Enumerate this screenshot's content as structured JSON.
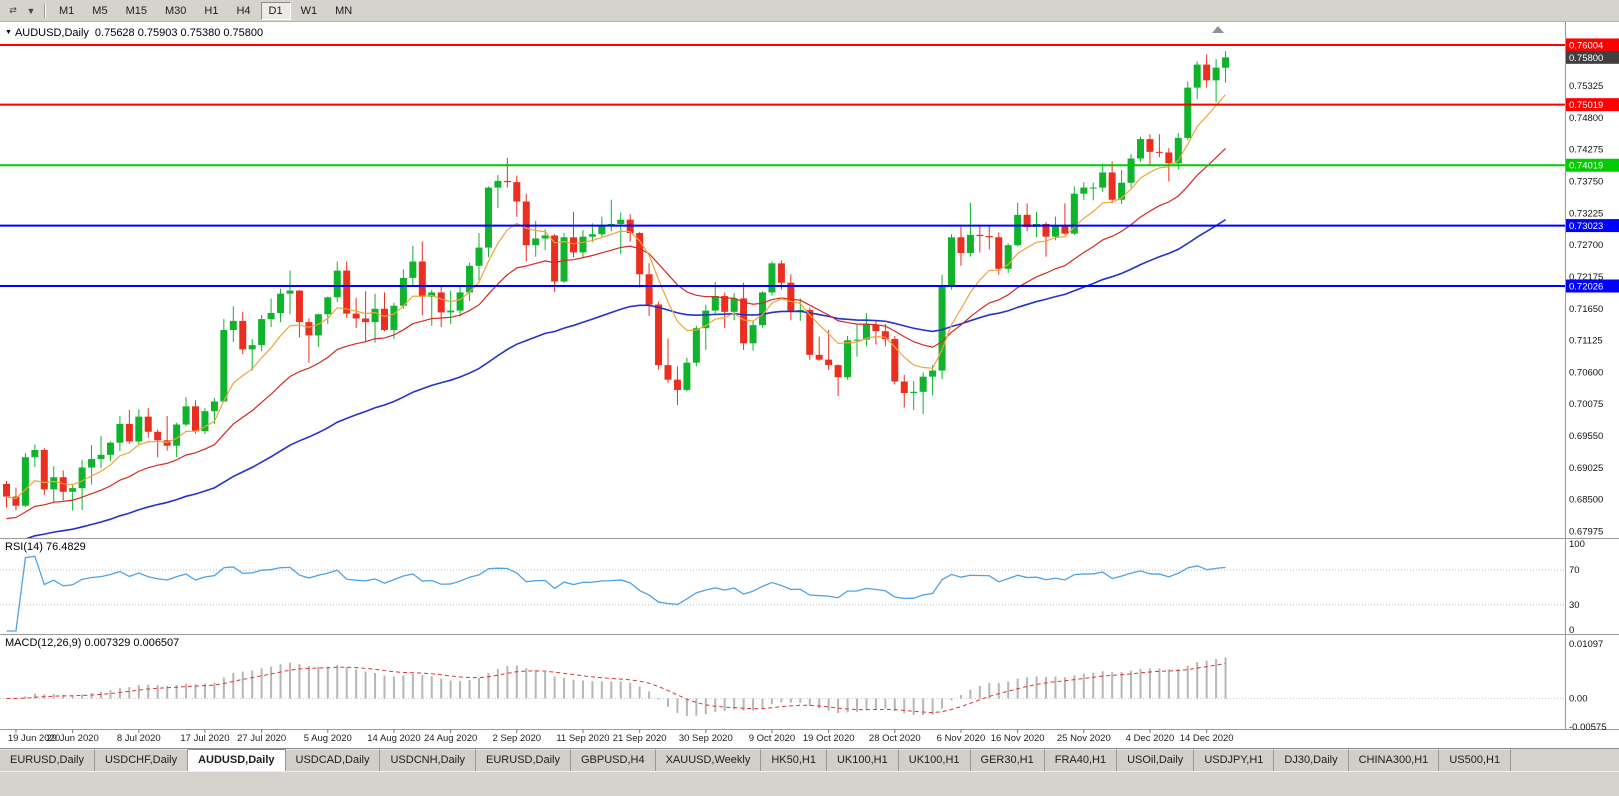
{
  "icons": {
    "collapse_glyph": "▼",
    "panning_glyph": "⇄",
    "caret_glyph": "▼"
  },
  "toolbar": {
    "timeframes": [
      {
        "label": "M1",
        "active": false
      },
      {
        "label": "M5",
        "active": false
      },
      {
        "label": "M15",
        "active": false
      },
      {
        "label": "M30",
        "active": false
      },
      {
        "label": "H1",
        "active": false
      },
      {
        "label": "H4",
        "active": false
      },
      {
        "label": "D1",
        "active": true
      },
      {
        "label": "W1",
        "active": false
      },
      {
        "label": "MN",
        "active": false
      }
    ]
  },
  "chart": {
    "title_symbol": "AUDUSD,Daily",
    "title_ohlc": "0.75628 0.75903 0.75380 0.75800"
  },
  "chart_data": {
    "type": "candlestick",
    "symbol": "AUDUSD",
    "timeframe": "Daily",
    "last_candle": {
      "open": 0.75628,
      "high": 0.75903,
      "low": 0.7538,
      "close": 0.758
    },
    "current_price_label": "0.75800",
    "price_range": {
      "min": 0.679,
      "max": 0.7635
    },
    "price_axis_ticks": [
      "0.75325",
      "0.74800",
      "0.74275",
      "0.73750",
      "0.73225",
      "0.72700",
      "0.72175",
      "0.71650",
      "0.71125",
      "0.70600",
      "0.70075",
      "0.69550",
      "0.69025",
      "0.68500",
      "0.67975"
    ],
    "levels": [
      {
        "price": 0.76004,
        "label": "0.76004",
        "color": "#ff0000",
        "kind": "resistance"
      },
      {
        "price": 0.75019,
        "label": "0.75019",
        "color": "#ff0000",
        "kind": "resistance"
      },
      {
        "price": 0.74019,
        "label": "0.74019",
        "color": "#00cc00",
        "kind": "support"
      },
      {
        "price": 0.73023,
        "label": "0.73023",
        "color": "#0000ff",
        "kind": "support"
      },
      {
        "price": 0.72026,
        "label": "0.72026",
        "color": "#0000ff",
        "kind": "support"
      }
    ],
    "x_labels": [
      [
        "19 Jun 2020",
        1
      ],
      [
        "29 Jun 2020",
        7
      ],
      [
        "8 Jul 2020",
        14
      ],
      [
        "17 Jul 2020",
        21
      ],
      [
        "27 Jul 2020",
        27
      ],
      [
        "5 Aug 2020",
        34
      ],
      [
        "14 Aug 2020",
        41
      ],
      [
        "24 Aug 2020",
        47
      ],
      [
        "2 Sep 2020",
        54
      ],
      [
        "11 Sep 2020",
        61
      ],
      [
        "21 Sep 2020",
        67
      ],
      [
        "30 Sep 2020",
        74
      ],
      [
        "9 Oct 2020",
        81
      ],
      [
        "19 Oct 2020",
        87
      ],
      [
        "28 Oct 2020",
        94
      ],
      [
        "6 Nov 2020",
        101
      ],
      [
        "16 Nov 2020",
        107
      ],
      [
        "25 Nov 2020",
        114
      ],
      [
        "4 Dec 2020",
        121
      ],
      [
        "14 Dec 2020",
        127
      ]
    ],
    "candles": [
      [
        0.6876,
        0.6881,
        0.6837,
        0.6855
      ],
      [
        0.6855,
        0.687,
        0.6832,
        0.684
      ],
      [
        0.684,
        0.6927,
        0.6838,
        0.692
      ],
      [
        0.692,
        0.6941,
        0.6904,
        0.6932
      ],
      [
        0.6932,
        0.6935,
        0.6858,
        0.6867
      ],
      [
        0.6867,
        0.6905,
        0.6846,
        0.6887
      ],
      [
        0.6887,
        0.6898,
        0.6849,
        0.6863
      ],
      [
        0.6863,
        0.6876,
        0.6832,
        0.6869
      ],
      [
        0.6869,
        0.6916,
        0.6833,
        0.6903
      ],
      [
        0.6903,
        0.694,
        0.6875,
        0.6917
      ],
      [
        0.6917,
        0.6955,
        0.6902,
        0.6924
      ],
      [
        0.6924,
        0.6946,
        0.6914,
        0.6944
      ],
      [
        0.6944,
        0.6988,
        0.693,
        0.6975
      ],
      [
        0.6975,
        0.6998,
        0.6942,
        0.6946
      ],
      [
        0.6946,
        0.6999,
        0.694,
        0.6987
      ],
      [
        0.6987,
        0.7001,
        0.6952,
        0.6962
      ],
      [
        0.6962,
        0.6966,
        0.692,
        0.6948
      ],
      [
        0.6948,
        0.6988,
        0.6931,
        0.6939
      ],
      [
        0.6939,
        0.6977,
        0.692,
        0.6974
      ],
      [
        0.6974,
        0.7019,
        0.6971,
        0.7004
      ],
      [
        0.7004,
        0.7014,
        0.6959,
        0.6963
      ],
      [
        0.6963,
        0.7001,
        0.6958,
        0.6996
      ],
      [
        0.6996,
        0.7018,
        0.6975,
        0.7012
      ],
      [
        0.7012,
        0.7148,
        0.7011,
        0.713
      ],
      [
        0.713,
        0.7169,
        0.711,
        0.7145
      ],
      [
        0.7145,
        0.716,
        0.709,
        0.7098
      ],
      [
        0.7098,
        0.7115,
        0.7063,
        0.7105
      ],
      [
        0.7105,
        0.7155,
        0.7095,
        0.7148
      ],
      [
        0.7148,
        0.7182,
        0.7135,
        0.7158
      ],
      [
        0.7158,
        0.7198,
        0.7143,
        0.719
      ],
      [
        0.719,
        0.7228,
        0.7156,
        0.7195
      ],
      [
        0.7195,
        0.7196,
        0.7118,
        0.7143
      ],
      [
        0.7143,
        0.7149,
        0.7076,
        0.7121
      ],
      [
        0.7121,
        0.7157,
        0.7102,
        0.7156
      ],
      [
        0.7156,
        0.7185,
        0.714,
        0.7184
      ],
      [
        0.7184,
        0.7243,
        0.7176,
        0.7228
      ],
      [
        0.7228,
        0.7243,
        0.715,
        0.7157
      ],
      [
        0.7157,
        0.7183,
        0.7133,
        0.7149
      ],
      [
        0.7149,
        0.7194,
        0.711,
        0.7143
      ],
      [
        0.7143,
        0.719,
        0.7109,
        0.7165
      ],
      [
        0.7165,
        0.7192,
        0.7128,
        0.713
      ],
      [
        0.713,
        0.7175,
        0.7115,
        0.717
      ],
      [
        0.717,
        0.723,
        0.7165,
        0.7216
      ],
      [
        0.7216,
        0.7269,
        0.7201,
        0.7243
      ],
      [
        0.7243,
        0.7276,
        0.7154,
        0.7185
      ],
      [
        0.7185,
        0.7196,
        0.7137,
        0.7192
      ],
      [
        0.7192,
        0.7203,
        0.7135,
        0.7159
      ],
      [
        0.7159,
        0.7195,
        0.714,
        0.7162
      ],
      [
        0.7162,
        0.7203,
        0.7152,
        0.7192
      ],
      [
        0.7192,
        0.7241,
        0.7178,
        0.7236
      ],
      [
        0.7236,
        0.729,
        0.7212,
        0.7266
      ],
      [
        0.7266,
        0.7367,
        0.725,
        0.7365
      ],
      [
        0.7365,
        0.7386,
        0.7331,
        0.7376
      ],
      [
        0.7376,
        0.7414,
        0.7365,
        0.7374
      ],
      [
        0.7374,
        0.7385,
        0.7317,
        0.7342
      ],
      [
        0.7342,
        0.7355,
        0.7243,
        0.727
      ],
      [
        0.727,
        0.731,
        0.7251,
        0.7281
      ],
      [
        0.7281,
        0.7296,
        0.7262,
        0.7286
      ],
      [
        0.7286,
        0.7288,
        0.7193,
        0.721
      ],
      [
        0.721,
        0.729,
        0.7208,
        0.7283
      ],
      [
        0.7283,
        0.7325,
        0.725,
        0.7258
      ],
      [
        0.7258,
        0.7295,
        0.7248,
        0.7284
      ],
      [
        0.7284,
        0.7306,
        0.7275,
        0.7288
      ],
      [
        0.7288,
        0.7317,
        0.7284,
        0.7301
      ],
      [
        0.7301,
        0.7345,
        0.7293,
        0.7305
      ],
      [
        0.7305,
        0.7324,
        0.7255,
        0.7312
      ],
      [
        0.7312,
        0.7321,
        0.7276,
        0.729
      ],
      [
        0.729,
        0.7292,
        0.72,
        0.7222
      ],
      [
        0.7222,
        0.724,
        0.7153,
        0.7172
      ],
      [
        0.7172,
        0.7177,
        0.7065,
        0.7072
      ],
      [
        0.7072,
        0.7116,
        0.7043,
        0.7048
      ],
      [
        0.7048,
        0.707,
        0.7006,
        0.7031
      ],
      [
        0.7031,
        0.7084,
        0.7029,
        0.7076
      ],
      [
        0.7076,
        0.7137,
        0.707,
        0.7133
      ],
      [
        0.7133,
        0.7172,
        0.7097,
        0.7162
      ],
      [
        0.7162,
        0.7209,
        0.7158,
        0.7186
      ],
      [
        0.7186,
        0.7192,
        0.7133,
        0.716
      ],
      [
        0.716,
        0.7191,
        0.7146,
        0.7182
      ],
      [
        0.7182,
        0.7208,
        0.7097,
        0.7108
      ],
      [
        0.7108,
        0.7145,
        0.7096,
        0.7138
      ],
      [
        0.7138,
        0.7194,
        0.7134,
        0.7192
      ],
      [
        0.7192,
        0.7243,
        0.7187,
        0.724
      ],
      [
        0.724,
        0.7245,
        0.7197,
        0.7208
      ],
      [
        0.7208,
        0.7222,
        0.7146,
        0.7161
      ],
      [
        0.7161,
        0.7182,
        0.7145,
        0.7163
      ],
      [
        0.7163,
        0.7167,
        0.7081,
        0.7089
      ],
      [
        0.7089,
        0.7119,
        0.7079,
        0.7081
      ],
      [
        0.7081,
        0.713,
        0.7064,
        0.7072
      ],
      [
        0.7072,
        0.7073,
        0.7021,
        0.7052
      ],
      [
        0.7052,
        0.712,
        0.7048,
        0.7113
      ],
      [
        0.7113,
        0.714,
        0.7086,
        0.7114
      ],
      [
        0.7114,
        0.7158,
        0.7103,
        0.7139
      ],
      [
        0.7139,
        0.7146,
        0.7106,
        0.7128
      ],
      [
        0.7128,
        0.714,
        0.7103,
        0.7115
      ],
      [
        0.7115,
        0.712,
        0.704,
        0.7045
      ],
      [
        0.7045,
        0.7056,
        0.7002,
        0.7026
      ],
      [
        0.7026,
        0.7046,
        0.6998,
        0.7028
      ],
      [
        0.7028,
        0.706,
        0.6991,
        0.7053
      ],
      [
        0.7053,
        0.7072,
        0.7022,
        0.7063
      ],
      [
        0.7063,
        0.7221,
        0.7049,
        0.7203
      ],
      [
        0.7203,
        0.7288,
        0.7197,
        0.7283
      ],
      [
        0.7283,
        0.73,
        0.7236,
        0.7257
      ],
      [
        0.7257,
        0.734,
        0.7251,
        0.7287
      ],
      [
        0.7287,
        0.7302,
        0.7258,
        0.7285
      ],
      [
        0.7285,
        0.7302,
        0.7263,
        0.7283
      ],
      [
        0.7283,
        0.7291,
        0.7221,
        0.7231
      ],
      [
        0.7231,
        0.7273,
        0.7224,
        0.727
      ],
      [
        0.727,
        0.734,
        0.7268,
        0.732
      ],
      [
        0.732,
        0.7339,
        0.7293,
        0.73
      ],
      [
        0.73,
        0.7325,
        0.7283,
        0.7305
      ],
      [
        0.7305,
        0.7308,
        0.7251,
        0.7284
      ],
      [
        0.7284,
        0.7317,
        0.7278,
        0.7303
      ],
      [
        0.7303,
        0.7339,
        0.7287,
        0.7289
      ],
      [
        0.7289,
        0.7367,
        0.7287,
        0.7355
      ],
      [
        0.7355,
        0.7374,
        0.7345,
        0.7365
      ],
      [
        0.7365,
        0.7373,
        0.7344,
        0.7365
      ],
      [
        0.7365,
        0.7405,
        0.7358,
        0.739
      ],
      [
        0.739,
        0.7408,
        0.7339,
        0.7345
      ],
      [
        0.7345,
        0.7394,
        0.7338,
        0.7373
      ],
      [
        0.7373,
        0.742,
        0.7365,
        0.7413
      ],
      [
        0.7413,
        0.7449,
        0.7407,
        0.7445
      ],
      [
        0.7445,
        0.7453,
        0.7401,
        0.7424
      ],
      [
        0.7424,
        0.7453,
        0.7415,
        0.7423
      ],
      [
        0.7423,
        0.743,
        0.7375,
        0.7405
      ],
      [
        0.7405,
        0.7455,
        0.7395,
        0.7447
      ],
      [
        0.7447,
        0.754,
        0.7443,
        0.753
      ],
      [
        0.753,
        0.7573,
        0.7511,
        0.7568
      ],
      [
        0.7568,
        0.7585,
        0.753,
        0.7542
      ],
      [
        0.7542,
        0.7577,
        0.7506,
        0.7563
      ],
      [
        0.75628,
        0.75903,
        0.7538,
        0.758
      ]
    ],
    "moving_averages": [
      {
        "period": 8,
        "type": "ema",
        "color": "#f0a43a",
        "seed_offset": 0
      },
      {
        "period": 21,
        "type": "ema",
        "color": "#d42a22",
        "seed_offset": -0.004
      },
      {
        "period": 55,
        "type": "ema",
        "color": "#2233cc",
        "seed_offset": -0.008
      }
    ],
    "rsi": {
      "label": "RSI(14) 76.4829",
      "period": 14,
      "last_value": 76.4829,
      "color": "#4ea3e6",
      "levels": [
        70,
        30
      ],
      "axis_ticks": [
        "100",
        "70",
        "30",
        "0"
      ],
      "range": [
        0,
        100
      ]
    },
    "macd": {
      "label": "MACD(12,26,9) 0.007329 0.006507",
      "fast": 12,
      "slow": 26,
      "signal_period": 9,
      "last_value": 0.007329,
      "last_signal": 0.006507,
      "histogram_color": "#b6b6b6",
      "signal_color": "#e03232",
      "axis_ticks": [
        "0.01097",
        "0.00",
        "-0.00575"
      ],
      "range": [
        -0.00575,
        0.01097
      ]
    },
    "colors": {
      "up": "#0fb32c",
      "down": "#ea2e1f",
      "background": "#ffffff",
      "axis_text": "#111111",
      "current_price_bg": "#404040"
    }
  },
  "tabs": [
    {
      "label": "EURUSD,Daily",
      "active": false
    },
    {
      "label": "USDCHF,Daily",
      "active": false
    },
    {
      "label": "AUDUSD,Daily",
      "active": true
    },
    {
      "label": "USDCAD,Daily",
      "active": false
    },
    {
      "label": "USDCNH,Daily",
      "active": false
    },
    {
      "label": "EURUSD,Daily",
      "active": false
    },
    {
      "label": "GBPUSD,H4",
      "active": false
    },
    {
      "label": "XAUUSD,Weekly",
      "active": false
    },
    {
      "label": "HK50,H1",
      "active": false
    },
    {
      "label": "UK100,H1",
      "active": false
    },
    {
      "label": "UK100,H1",
      "active": false
    },
    {
      "label": "GER30,H1",
      "active": false
    },
    {
      "label": "FRA40,H1",
      "active": false
    },
    {
      "label": "USOil,Daily",
      "active": false
    },
    {
      "label": "USDJPY,H1",
      "active": false
    },
    {
      "label": "DJ30,Daily",
      "active": false
    },
    {
      "label": "CHINA300,H1",
      "active": false
    },
    {
      "label": "US500,H1",
      "active": false
    }
  ]
}
